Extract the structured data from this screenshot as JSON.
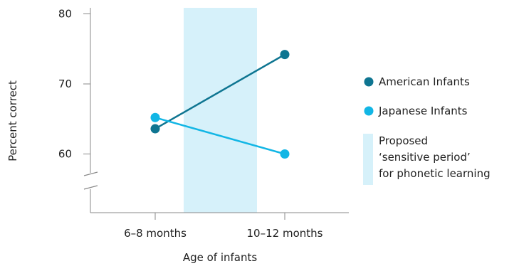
{
  "chart_data": {
    "type": "line",
    "title": "",
    "xlabel": "Age of infants",
    "ylabel": "Percent correct",
    "categories": [
      "6–8 months",
      "10–12 months"
    ],
    "yticks": [
      "60",
      "70",
      "80"
    ],
    "ylim": [
      50,
      81
    ],
    "axis_break": true,
    "series": [
      {
        "name": "American Infants",
        "color": "#0e7591",
        "values": [
          63.6,
          74.2
        ]
      },
      {
        "name": "Japanese Infants",
        "color": "#12b6e5",
        "values": [
          65.2,
          60.0
        ]
      }
    ],
    "shaded_region": {
      "color": "#d6f1fa",
      "label_lines": [
        "Proposed",
        "‘sensitive period’",
        "for phonetic learning"
      ]
    },
    "grid": false,
    "legend_position": "right"
  }
}
